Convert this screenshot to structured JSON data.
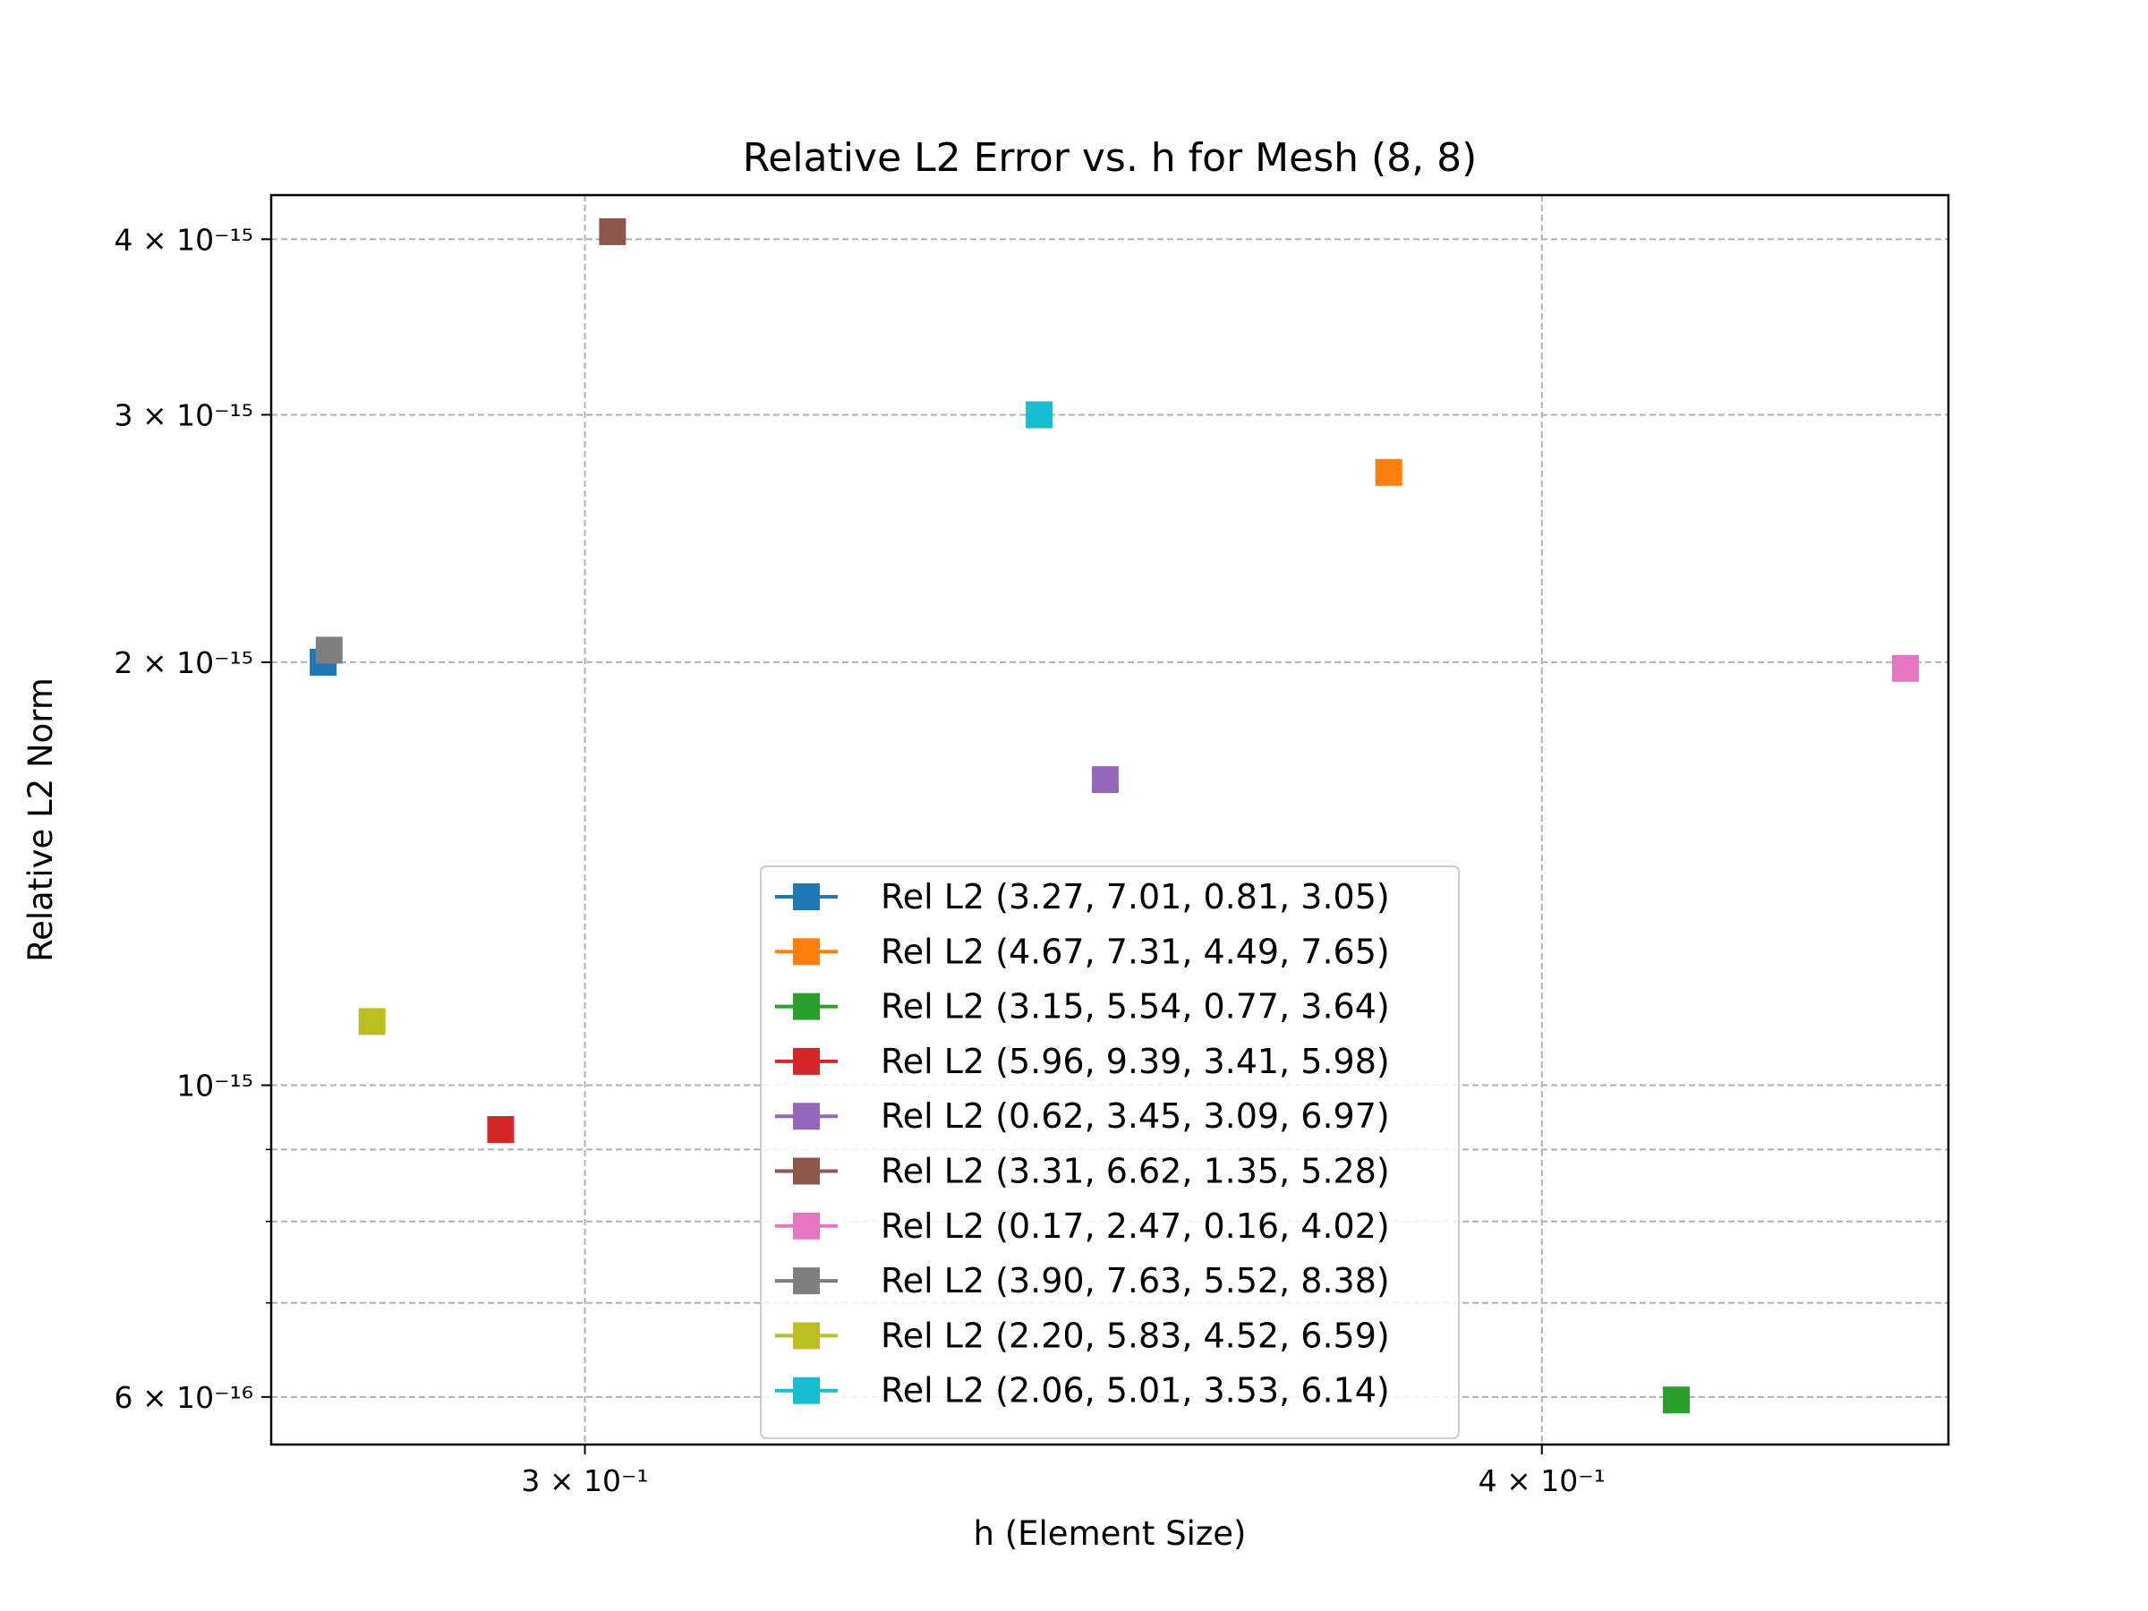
{
  "chart_data": {
    "type": "scatter",
    "title": "Relative L2 Error vs. h for Mesh (8, 8)",
    "xlabel": "h (Element Size)",
    "ylabel": "Relative L2 Norm",
    "xscale": "log",
    "yscale": "log",
    "xlim": [
      0.273,
      0.452
    ],
    "ylim": [
      5.55e-16,
      4.3e-15
    ],
    "grid": true,
    "legend_position": "lower-center",
    "marker": "square",
    "x_ticks": [
      {
        "value": 0.3,
        "label": "3 × 10⁻¹"
      },
      {
        "value": 0.4,
        "label": "4 × 10⁻¹"
      }
    ],
    "y_ticks": [
      {
        "value": 6e-16,
        "label": "6 × 10⁻¹⁶"
      },
      {
        "value": 1e-15,
        "label": "10⁻¹⁵"
      },
      {
        "value": 2e-15,
        "label": "2 × 10⁻¹⁵"
      },
      {
        "value": 3e-15,
        "label": "3 × 10⁻¹⁵"
      },
      {
        "value": 4e-15,
        "label": "4 × 10⁻¹⁵"
      }
    ],
    "y_minor_gridlines": [
      7e-16,
      8e-16,
      9e-16
    ],
    "series": [
      {
        "name": "Rel L2 (3.27, 7.01, 0.81, 3.05)",
        "color": "#1f77b4",
        "x": [
          0.2773
        ],
        "y": [
          2e-15
        ]
      },
      {
        "name": "Rel L2 (4.67, 7.31, 4.49, 7.65)",
        "color": "#ff7f0e",
        "x": [
          0.382
        ],
        "y": [
          2.73e-15
        ]
      },
      {
        "name": "Rel L2 (3.15, 5.54, 0.77, 3.64)",
        "color": "#2ca02c",
        "x": [
          0.4165
        ],
        "y": [
          5.97e-16
        ]
      },
      {
        "name": "Rel L2 (5.96, 9.39, 3.41, 5.98)",
        "color": "#d62728",
        "x": [
          0.2925
        ],
        "y": [
          9.3e-16
        ]
      },
      {
        "name": "Rel L2 (0.62, 3.45, 3.09, 6.97)",
        "color": "#9467bd",
        "x": [
          0.3508
        ],
        "y": [
          1.65e-15
        ]
      },
      {
        "name": "Rel L2 (3.31, 6.62, 1.35, 5.28)",
        "color": "#8c564b",
        "x": [
          0.3025
        ],
        "y": [
          4.05e-15
        ]
      },
      {
        "name": "Rel L2 (0.17, 2.47, 0.16, 4.02)",
        "color": "#e377c2",
        "x": [
          0.4462
        ],
        "y": [
          1.98e-15
        ]
      },
      {
        "name": "Rel L2 (3.90, 7.63, 5.52, 8.38)",
        "color": "#7f7f7f",
        "x": [
          0.2778
        ],
        "y": [
          2.04e-15
        ]
      },
      {
        "name": "Rel L2 (2.20, 5.83, 4.52, 6.59)",
        "color": "#bcbd22",
        "x": [
          0.2814
        ],
        "y": [
          1.11e-15
        ]
      },
      {
        "name": "Rel L2 (2.06, 5.01, 3.53, 6.14)",
        "color": "#17becf",
        "x": [
          0.3439
        ],
        "y": [
          3e-15
        ]
      }
    ]
  }
}
